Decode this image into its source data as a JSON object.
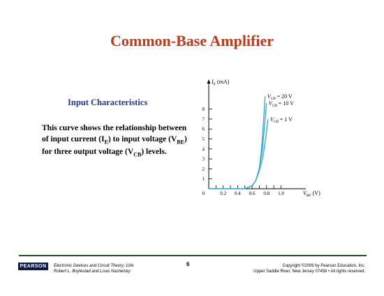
{
  "slide": {
    "title": "Common-Base Amplifier",
    "subtitle": "Input Characteristics",
    "desc": {
      "p1": "This curve shows the relationship between of input current (I",
      "s1": "E",
      "p2": ") to input voltage (V",
      "s2": "BE",
      "p3": ") for three output voltage (V",
      "s3": "CB",
      "p4": ") levels."
    }
  },
  "footer": {
    "logo": "PEARSON",
    "book_title": "Electronic Devices and Circuit Theory, 10/e",
    "authors": "Robert L. Boylestad and Louis Nashelsky",
    "page": "6",
    "copyright": "Copyright ©2009 by Pearson Education, Inc.",
    "address": "Upper Saddle River, New Jersey 07458 • All rights reserved."
  },
  "chart_data": {
    "type": "line",
    "ylabel": "I_E (mA)",
    "xlabel": "V_BE (V)",
    "x_ticks": [
      "0.2",
      "0.4",
      "0.6",
      "0.8",
      "1.0"
    ],
    "y_ticks": [
      "1",
      "2",
      "3",
      "4",
      "5",
      "6",
      "7",
      "8"
    ],
    "origin_label": "0",
    "xlim": [
      0,
      1.2
    ],
    "ylim": [
      0,
      10
    ],
    "line_color": "#2aa7d6",
    "series": [
      {
        "name": "V_CB = 20 V",
        "points": [
          [
            0,
            0
          ],
          [
            0.5,
            0
          ],
          [
            0.6,
            0.3
          ],
          [
            0.65,
            0.8
          ],
          [
            0.7,
            2
          ],
          [
            0.73,
            4
          ],
          [
            0.76,
            7
          ],
          [
            0.78,
            9.3
          ]
        ]
      },
      {
        "name": "V_CB = 10 V",
        "points": [
          [
            0,
            0
          ],
          [
            0.5,
            0
          ],
          [
            0.6,
            0.3
          ],
          [
            0.65,
            0.8
          ],
          [
            0.7,
            2
          ],
          [
            0.74,
            3.8
          ],
          [
            0.77,
            6.2
          ],
          [
            0.8,
            8.6
          ]
        ]
      },
      {
        "name": "V_CB = 1 V",
        "points": [
          [
            0,
            0
          ],
          [
            0.5,
            0
          ],
          [
            0.6,
            0.3
          ],
          [
            0.65,
            0.8
          ],
          [
            0.7,
            1.8
          ],
          [
            0.75,
            3.2
          ],
          [
            0.79,
            5.2
          ],
          [
            0.82,
            7.0
          ]
        ]
      }
    ]
  }
}
